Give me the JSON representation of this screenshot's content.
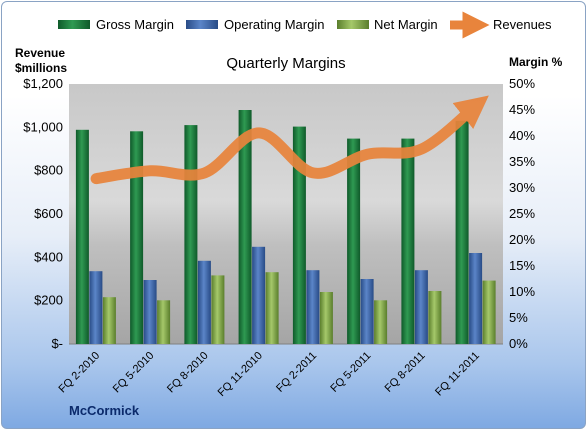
{
  "chart_data": {
    "type": "bar",
    "title": "Quarterly Margins",
    "company": "McCormick",
    "y_left_label_line1": "Revenue",
    "y_left_label_line2": "$millions",
    "y_right_label": "Margin %",
    "categories": [
      "FQ 2-2010",
      "FQ 5-2010",
      "FQ 8-2010",
      "FQ 11-2010",
      "FQ 2-2011",
      "FQ 5-2011",
      "FQ 8-2011",
      "FQ 11-2011"
    ],
    "left_axis": {
      "min": 0,
      "max": 1200,
      "step": 200,
      "tick_labels": [
        "$-",
        "$200",
        "$400",
        "$600",
        "$800",
        "$1,000",
        "$1,200"
      ]
    },
    "right_axis": {
      "min": 0,
      "max": 50,
      "step": 5,
      "tick_labels": [
        "0%",
        "5%",
        "10%",
        "15%",
        "20%",
        "25%",
        "30%",
        "35%",
        "40%",
        "45%",
        "50%"
      ]
    },
    "series": [
      {
        "name": "Gross Margin",
        "axis": "right",
        "kind": "bar",
        "color": "#1e7a3e",
        "values": [
          41.2,
          40.9,
          42.1,
          45.0,
          41.8,
          39.5,
          39.5,
          42.9
        ]
      },
      {
        "name": "Operating Margin",
        "axis": "right",
        "kind": "bar",
        "color": "#3b64a8",
        "values": [
          14.0,
          12.3,
          16.0,
          18.7,
          14.2,
          12.5,
          14.2,
          17.5
        ]
      },
      {
        "name": "Net Margin",
        "axis": "right",
        "kind": "bar",
        "color": "#7ea84a",
        "values": [
          9.0,
          8.4,
          13.2,
          13.8,
          10.0,
          8.4,
          10.2,
          12.2
        ]
      },
      {
        "name": "Revenues",
        "axis": "right",
        "kind": "line",
        "color": "#e8843c",
        "values": [
          31.8,
          33.3,
          32.9,
          40.6,
          32.9,
          36.5,
          37.5,
          45.8
        ]
      }
    ],
    "legend_position": "top",
    "grid": false
  }
}
